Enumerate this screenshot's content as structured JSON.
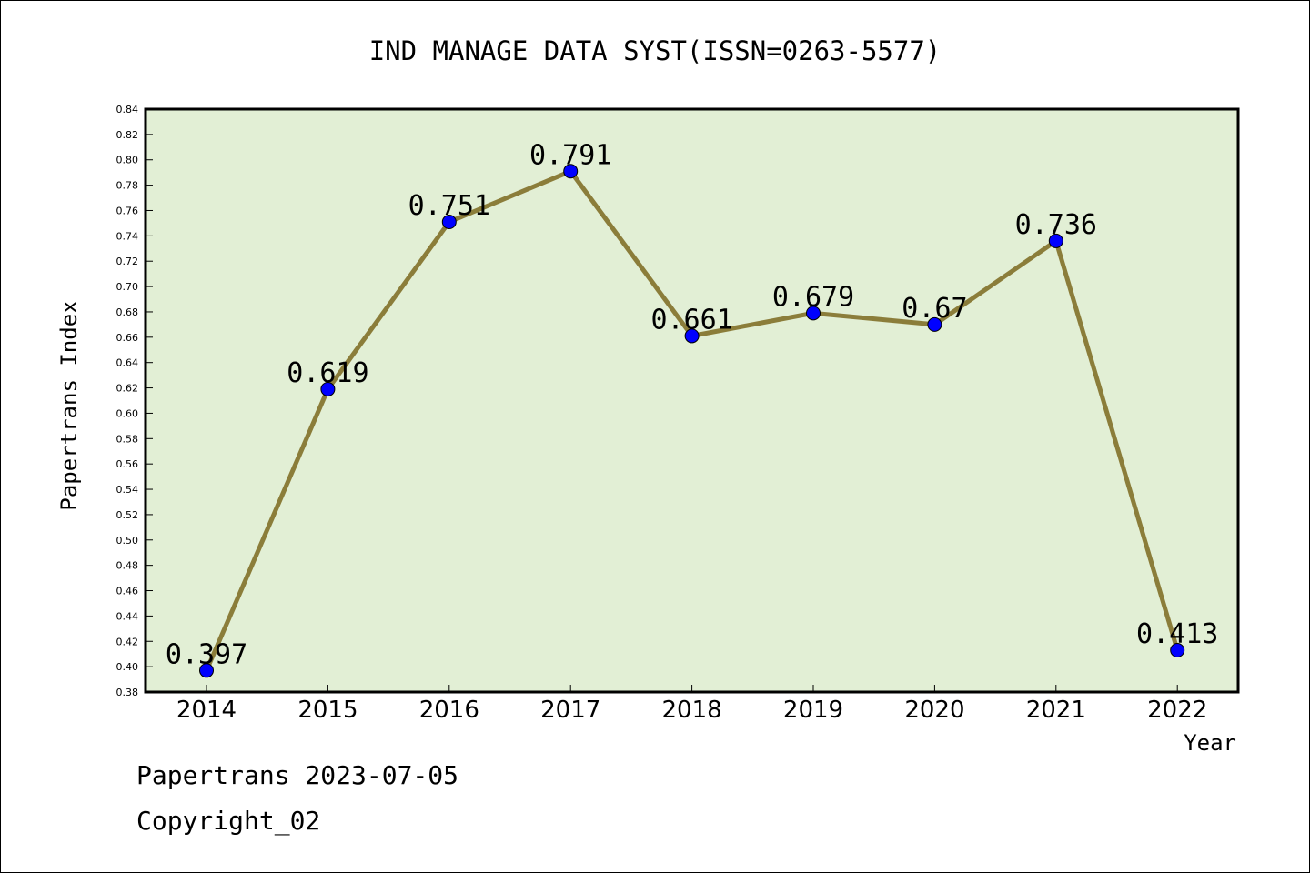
{
  "chart_data": {
    "type": "line",
    "title": "IND MANAGE DATA SYST(ISSN=0263-5577)",
    "xlabel": "Year",
    "ylabel": "Papertrans Index",
    "categories": [
      "2014",
      "2015",
      "2016",
      "2017",
      "2018",
      "2019",
      "2020",
      "2021",
      "2022"
    ],
    "series": [
      {
        "values": [
          0.397,
          0.619,
          0.751,
          0.791,
          0.661,
          0.679,
          0.67,
          0.736,
          0.413
        ],
        "data_labels": [
          "0.397",
          "0.619",
          "0.751",
          "0.791",
          "0.661",
          "0.679",
          "0.67",
          "0.736",
          "0.413"
        ]
      }
    ],
    "ylim": [
      0.38,
      0.84
    ],
    "yticks": [
      "0.38",
      "0.40",
      "0.42",
      "0.44",
      "0.46",
      "0.48",
      "0.50",
      "0.52",
      "0.54",
      "0.56",
      "0.58",
      "0.60",
      "0.62",
      "0.64",
      "0.66",
      "0.68",
      "0.70",
      "0.72",
      "0.74",
      "0.76",
      "0.78",
      "0.80",
      "0.82",
      "0.84"
    ],
    "grid": false,
    "colors": {
      "plot_background": "#e2efd5",
      "line": "#8b7d3a",
      "marker": "#0000ff"
    }
  },
  "footer": {
    "line1": "Papertrans 2023-07-05",
    "line2": "Copyright_02"
  }
}
